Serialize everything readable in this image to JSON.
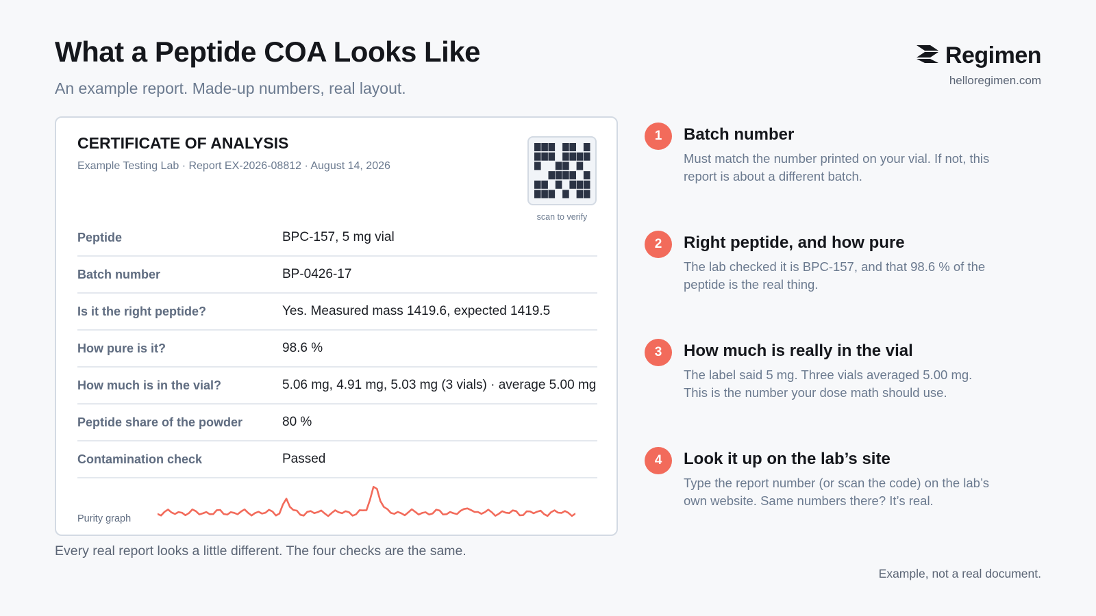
{
  "header": {
    "title": "What a Peptide COA Looks Like",
    "subtitle": "An example report. Made-up numbers, real layout."
  },
  "brand": {
    "name": "Regimen",
    "url": "helloregimen.com",
    "logo_icon": "regimen-chevron-logo"
  },
  "certificate": {
    "title": "CERTIFICATE OF ANALYSIS",
    "meta": "Example Testing Lab · Report EX-2026-08812 · August 14, 2026",
    "qr_caption": "scan to verify",
    "rows": [
      {
        "label": "Peptide",
        "value": "BPC-157, 5 mg vial"
      },
      {
        "label": "Batch number",
        "value": "BP-0426-17"
      },
      {
        "label": "Is it the right peptide?",
        "value": "Yes. Measured mass 1419.6, expected 1419.5"
      },
      {
        "label": "How pure is it?",
        "value": "98.6 %"
      },
      {
        "label": "How much is in the vial?",
        "value": "5.06 mg, 4.91 mg, 5.03 mg (3 vials) · average 5.00 mg"
      },
      {
        "label": "Peptide share of the powder",
        "value": "80 %"
      },
      {
        "label": "Contamination check",
        "value": "Passed"
      }
    ],
    "graph_label": "Purity graph"
  },
  "footnote": "Every real report looks a little different. The four checks are the same.",
  "checks": [
    {
      "number": "1",
      "title": "Batch number",
      "body": "Must match the number printed on your vial. If not, this report is about a different batch."
    },
    {
      "number": "2",
      "title": "Right peptide, and how pure",
      "body": "The lab checked it is BPC-157, and that 98.6 % of the peptide is the real thing."
    },
    {
      "number": "3",
      "title": "How much is really in the vial",
      "body": "The label said 5 mg. Three vials averaged 5.00 mg. This is the number your dose math should use."
    },
    {
      "number": "4",
      "title": "Look it up on the lab’s site",
      "body": "Type the report number (or scan the code) on the lab’s own website. Same numbers there? It’s real."
    }
  ],
  "disclaimer": "Example, not a real document.",
  "colors": {
    "accent": "#f26b5b",
    "text_dark": "#15171c",
    "text_muted": "#6b7a8f",
    "qr_dark": "#2b3344",
    "border": "#d3dae3"
  }
}
